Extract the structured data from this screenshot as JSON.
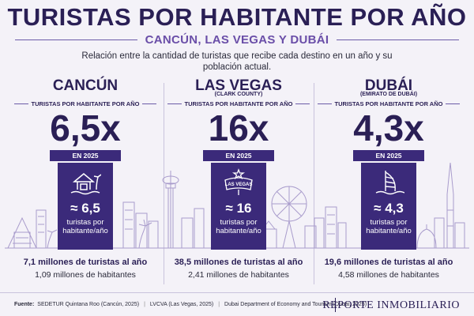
{
  "header": {
    "title": "TURISTAS POR HABITANTE POR AÑO",
    "subtitle": "CANCÚN, LAS VEGAS Y DUBÁI",
    "description": "Relación entre la cantidad de turistas que recibe cada destino en un año y su población actual."
  },
  "cities": [
    {
      "name": "CANCÚN",
      "subname": "",
      "metric_label": "TURISTAS POR HABITANTE POR AÑO",
      "ratio": "6,5x",
      "year_label": "EN 2025",
      "card_value": "≈ 6,5",
      "card_unit": "turistas por habitante/año",
      "icon": "beach-hut-icon",
      "tourists": "7,1 millones de turistas al año",
      "residents": "1,09 millones de habitantes"
    },
    {
      "name": "LAS VEGAS",
      "subname": "(CLARK COUNTY)",
      "metric_label": "TURISTAS POR HABITANTE POR AÑO",
      "ratio": "16x",
      "year_label": "EN 2025",
      "card_value": "≈ 16",
      "card_unit": "turistas por habitante/año",
      "icon": "las-vegas-sign-icon",
      "icon_text": "LAS VEGAS",
      "tourists": "38,5 millones de turistas al año",
      "residents": "2,41 millones de habitantes"
    },
    {
      "name": "DUBÁI",
      "subname": "(EMIRATO DE DUBÁI)",
      "metric_label": "TURISTAS POR HABITANTE POR AÑO",
      "ratio": "4,3x",
      "year_label": "EN 2025",
      "card_value": "≈ 4,3",
      "card_unit": "turistas por habitante/año",
      "icon": "burj-al-arab-icon",
      "tourists": "19,6 millones de turistas al año",
      "residents": "4,58 millones de habitantes"
    }
  ],
  "footer": {
    "label": "Fuente:",
    "sources": [
      "SEDETUR Quintana Roo (Cancún, 2025)",
      "LVCVA (Las Vegas, 2025)",
      "Dubai Department of Economy and Tourism (Dubái, 2025)"
    ],
    "brand": "REPORTE INMOBILIARIO"
  },
  "colors": {
    "navy": "#2a1f55",
    "accent_purple": "#6a4ea8",
    "card_purple": "#3b2a7a",
    "background": "#f4f2f8"
  }
}
